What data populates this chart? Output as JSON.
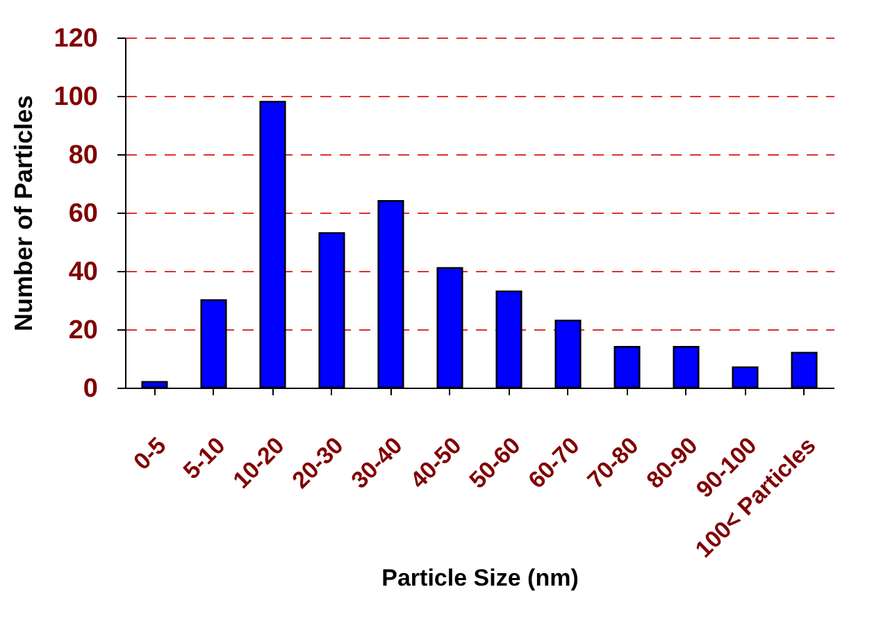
{
  "chart_data": {
    "type": "bar",
    "xlabel": "Particle Size  (nm)",
    "ylabel": "Number of Particles",
    "categories": [
      "0-5",
      "5-10",
      "10-20",
      "20-30",
      "30-40",
      "40-50",
      "50-60",
      "60-70",
      "70-80",
      "80-90",
      "90-100",
      "100< Particles"
    ],
    "values": [
      2,
      30,
      98,
      53,
      64,
      41,
      33,
      23,
      14,
      14,
      7,
      12
    ],
    "color": "#0000ff",
    "ylim": [
      0,
      120
    ],
    "yticks": [
      0,
      20,
      40,
      60,
      80,
      100,
      120
    ],
    "grid": "y"
  }
}
